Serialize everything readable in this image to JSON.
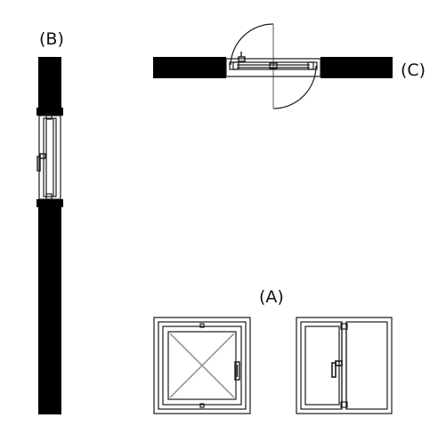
{
  "labels": {
    "a": "(A)",
    "b": "(B)",
    "c": "(C)"
  },
  "colors": {
    "wall": "#000000",
    "line": "#1a1a1a",
    "opening_diagonal": "#8a8a8a",
    "background": "#ffffff"
  },
  "views": [
    {
      "label_key": "a",
      "depicts": "window-elevations-front-and-rear"
    },
    {
      "label_key": "b",
      "depicts": "window-section-in-wall"
    },
    {
      "label_key": "c",
      "depicts": "window-plan-with-swing-arcs"
    }
  ]
}
